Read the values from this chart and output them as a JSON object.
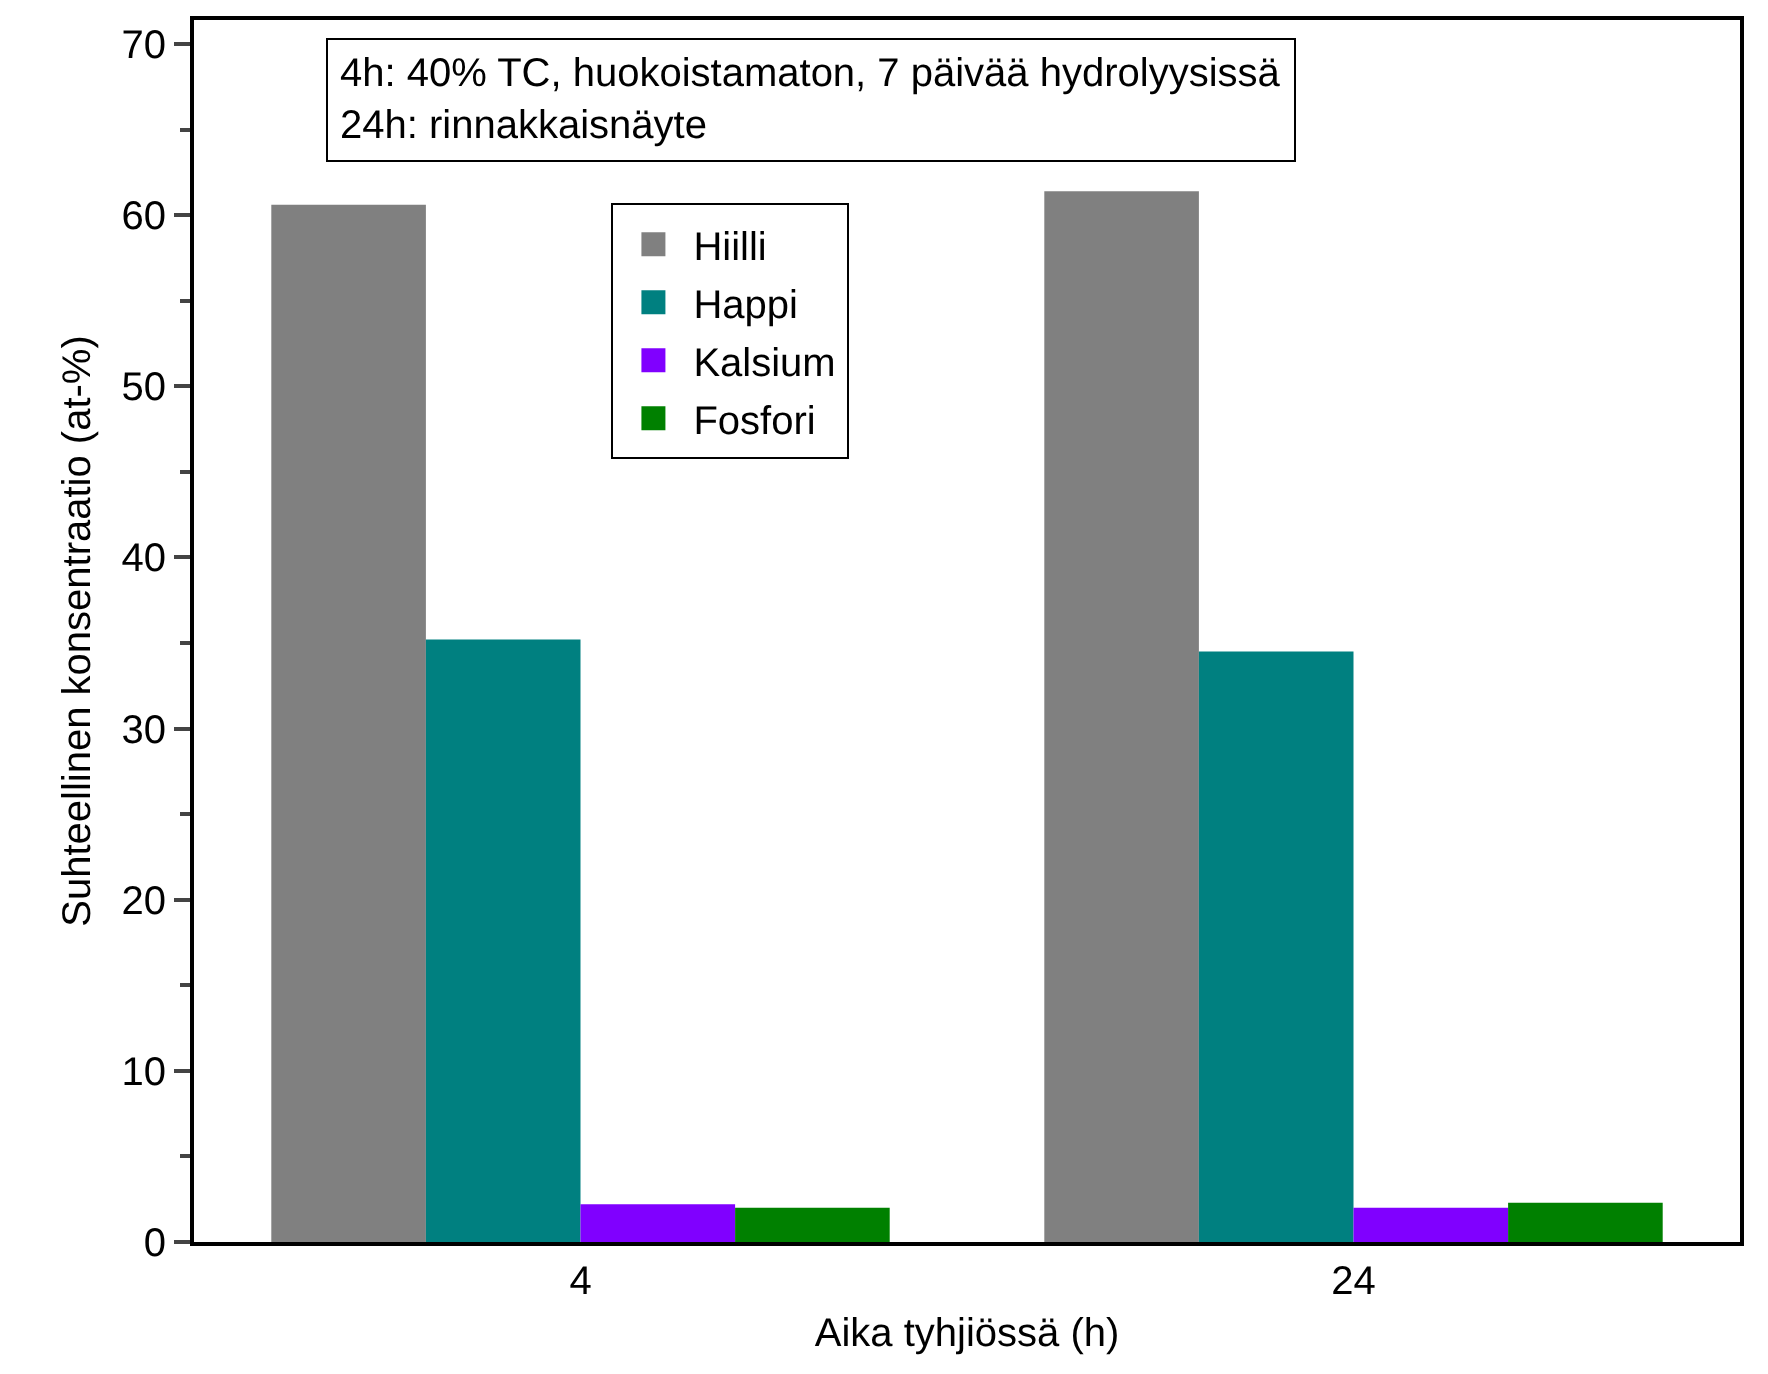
{
  "chart_data": {
    "type": "bar",
    "xlabel": "Aika tyhjiössä (h)",
    "ylabel": "Suhteellinen konsentraatio (at-%)",
    "categories": [
      "4",
      "24"
    ],
    "series": [
      {
        "name": "Hiilli",
        "color": "#808080",
        "values": [
          60.6,
          61.4
        ]
      },
      {
        "name": "Happi",
        "color": "#008080",
        "values": [
          35.2,
          34.5
        ]
      },
      {
        "name": "Kalsium",
        "color": "#8000ff",
        "values": [
          2.2,
          2.0
        ]
      },
      {
        "name": "Fosfori",
        "color": "#008000",
        "values": [
          2.0,
          2.3
        ]
      }
    ],
    "ylim": [
      0,
      71.4
    ],
    "yticks": [
      0,
      10,
      20,
      30,
      40,
      50,
      60,
      70
    ],
    "annotations": [
      "4h: 40% TC, huokoistamaton, 7 päivää hydrolyysissä\n24h: rinnakkaisnäyte"
    ],
    "grid": false,
    "legend": "top left"
  }
}
